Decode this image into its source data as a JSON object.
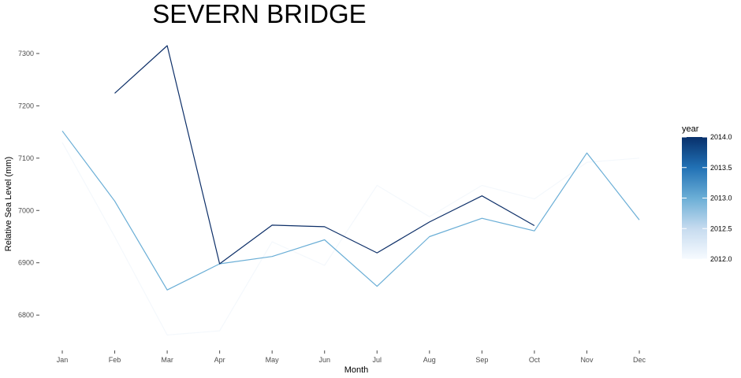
{
  "chart_data": {
    "type": "line",
    "title": "SEVERN BRIDGE",
    "xlabel": "Month",
    "ylabel": "Relative Sea Level (mm)",
    "categories": [
      "Jan",
      "Feb",
      "Mar",
      "Apr",
      "May",
      "Jun",
      "Jul",
      "Aug",
      "Sep",
      "Oct",
      "Nov",
      "Dec"
    ],
    "ylim": [
      6740,
      7330
    ],
    "yticks": [
      6800,
      6900,
      7000,
      7100,
      7200,
      7300
    ],
    "grid": false,
    "legend": {
      "title": "year",
      "position": "right",
      "type": "colorbar",
      "range": [
        2012.0,
        2014.0
      ],
      "ticks": [
        "2012.0",
        "2012.5",
        "2013.0",
        "2013.5",
        "2014.0"
      ],
      "colors": [
        "#f7fbff",
        "#c6dbef",
        "#6baed6",
        "#2171b5",
        "#08306b"
      ]
    },
    "series": [
      {
        "year": 2012,
        "color": "#f4f8fc",
        "values": [
          7130,
          6950,
          6762,
          6770,
          6940,
          6895,
          7048,
          6988,
          7048,
          7022,
          7092,
          7100
        ]
      },
      {
        "year": 2013,
        "color": "#6aaed6",
        "values": [
          7152,
          7018,
          6848,
          6898,
          6912,
          6944,
          6855,
          6950,
          6985,
          6961,
          7110,
          6982
        ]
      },
      {
        "year": 2014,
        "color": "#0d2f68",
        "values": [
          null,
          7224,
          7315,
          6898,
          6972,
          6969,
          6919,
          6978,
          7028,
          6971,
          null,
          null
        ]
      }
    ]
  }
}
